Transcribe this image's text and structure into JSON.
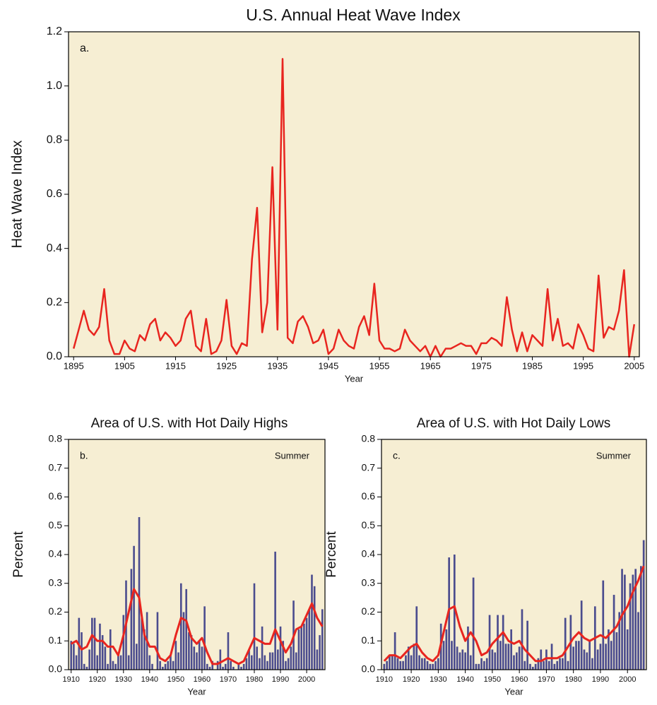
{
  "chart_data": [
    {
      "type": "line",
      "title": "U.S. Annual Heat Wave Index",
      "panel_label": "a.",
      "xlabel": "Year",
      "ylabel": "Heat Wave Index",
      "background": "#f6eed3",
      "xlim": [
        1894,
        2006
      ],
      "xticks": [
        1895,
        1905,
        1915,
        1925,
        1935,
        1945,
        1955,
        1965,
        1975,
        1985,
        1995,
        2005
      ],
      "ylim": [
        0,
        1.2
      ],
      "yticks": [
        {
          "value": 0,
          "label": "0.0"
        },
        0.2,
        0.4,
        0.6,
        0.8,
        {
          "value": 1,
          "label": "1.0"
        },
        1.2
      ],
      "series": [
        {
          "type": "line",
          "color": "#e8251f",
          "x": [
            1895,
            1896,
            1897,
            1898,
            1899,
            1900,
            1901,
            1902,
            1903,
            1904,
            1905,
            1906,
            1907,
            1908,
            1909,
            1910,
            1911,
            1912,
            1913,
            1914,
            1915,
            1916,
            1917,
            1918,
            1919,
            1920,
            1921,
            1922,
            1923,
            1924,
            1925,
            1926,
            1927,
            1928,
            1929,
            1930,
            1931,
            1932,
            1933,
            1934,
            1935,
            1936,
            1937,
            1938,
            1939,
            1940,
            1941,
            1942,
            1943,
            1944,
            1945,
            1946,
            1947,
            1948,
            1949,
            1950,
            1951,
            1952,
            1953,
            1954,
            1955,
            1956,
            1957,
            1958,
            1959,
            1960,
            1961,
            1962,
            1963,
            1964,
            1965,
            1966,
            1967,
            1968,
            1969,
            1970,
            1971,
            1972,
            1973,
            1974,
            1975,
            1976,
            1977,
            1978,
            1979,
            1980,
            1981,
            1982,
            1983,
            1984,
            1985,
            1986,
            1987,
            1988,
            1989,
            1990,
            1991,
            1992,
            1993,
            1994,
            1995,
            1996,
            1997,
            1998,
            1999,
            2000,
            2001,
            2002,
            2003,
            2004,
            2005
          ],
          "values": [
            0.03,
            0.1,
            0.17,
            0.1,
            0.08,
            0.11,
            0.25,
            0.06,
            0.01,
            0.01,
            0.06,
            0.03,
            0.02,
            0.08,
            0.06,
            0.12,
            0.14,
            0.06,
            0.09,
            0.07,
            0.04,
            0.06,
            0.14,
            0.17,
            0.04,
            0.02,
            0.14,
            0.01,
            0.02,
            0.06,
            0.21,
            0.04,
            0.01,
            0.05,
            0.04,
            0.36,
            0.55,
            0.09,
            0.2,
            0.7,
            0.1,
            1.1,
            0.07,
            0.05,
            0.13,
            0.15,
            0.11,
            0.05,
            0.06,
            0.1,
            0.01,
            0.03,
            0.1,
            0.06,
            0.04,
            0.03,
            0.11,
            0.15,
            0.08,
            0.27,
            0.06,
            0.03,
            0.03,
            0.02,
            0.03,
            0.1,
            0.06,
            0.04,
            0.02,
            0.04,
            0.0,
            0.04,
            0.0,
            0.03,
            0.03,
            0.04,
            0.05,
            0.04,
            0.04,
            0.01,
            0.05,
            0.05,
            0.07,
            0.06,
            0.04,
            0.22,
            0.1,
            0.02,
            0.09,
            0.02,
            0.08,
            0.06,
            0.04,
            0.25,
            0.06,
            0.14,
            0.04,
            0.05,
            0.03,
            0.12,
            0.08,
            0.03,
            0.02,
            0.3,
            0.07,
            0.11,
            0.1,
            0.17,
            0.32,
            0.0,
            0.12
          ]
        }
      ]
    },
    {
      "type": "bar",
      "title": "Area of U.S. with Hot Daily Highs",
      "panel_label": "b.",
      "annotation": "Summer",
      "xlabel": "Year",
      "ylabel": "Percent",
      "background": "#f6eed3",
      "xlim": [
        1909,
        2007
      ],
      "xticks": [
        1910,
        1920,
        1930,
        1940,
        1950,
        1960,
        1970,
        1980,
        1990,
        2000
      ],
      "ylim": [
        0,
        0.8
      ],
      "yticks": [
        {
          "value": 0,
          "label": "0.0"
        },
        0.1,
        0.2,
        0.3,
        0.4,
        0.5,
        0.6,
        0.7,
        0.8
      ],
      "series": [
        {
          "type": "bar",
          "color": "#4b4c8e",
          "x": [
            1910,
            1911,
            1912,
            1913,
            1914,
            1915,
            1916,
            1917,
            1918,
            1919,
            1920,
            1921,
            1922,
            1923,
            1924,
            1925,
            1926,
            1927,
            1928,
            1929,
            1930,
            1931,
            1932,
            1933,
            1934,
            1935,
            1936,
            1937,
            1938,
            1939,
            1940,
            1941,
            1942,
            1943,
            1944,
            1945,
            1946,
            1947,
            1948,
            1949,
            1950,
            1951,
            1952,
            1953,
            1954,
            1955,
            1956,
            1957,
            1958,
            1959,
            1960,
            1961,
            1962,
            1963,
            1964,
            1965,
            1966,
            1967,
            1968,
            1969,
            1970,
            1971,
            1972,
            1973,
            1974,
            1975,
            1976,
            1977,
            1978,
            1979,
            1980,
            1981,
            1982,
            1983,
            1984,
            1985,
            1986,
            1987,
            1988,
            1989,
            1990,
            1991,
            1992,
            1993,
            1994,
            1995,
            1996,
            1997,
            1998,
            1999,
            2000,
            2001,
            2002,
            2003,
            2004,
            2005,
            2006
          ],
          "values": [
            0.1,
            0.09,
            0.05,
            0.18,
            0.13,
            0.02,
            0.01,
            0.07,
            0.18,
            0.18,
            0.05,
            0.16,
            0.12,
            0.08,
            0.02,
            0.14,
            0.03,
            0.02,
            0.05,
            0.05,
            0.19,
            0.31,
            0.05,
            0.35,
            0.43,
            0.09,
            0.53,
            0.18,
            0.14,
            0.2,
            0.05,
            0.02,
            0.0,
            0.2,
            0.03,
            0.01,
            0.02,
            0.03,
            0.05,
            0.03,
            0.1,
            0.06,
            0.3,
            0.2,
            0.28,
            0.13,
            0.12,
            0.08,
            0.06,
            0.1,
            0.08,
            0.22,
            0.02,
            0.01,
            0.03,
            0.0,
            0.03,
            0.07,
            0.01,
            0.02,
            0.13,
            0.03,
            0.01,
            0.0,
            0.02,
            0.01,
            0.02,
            0.04,
            0.07,
            0.05,
            0.3,
            0.08,
            0.04,
            0.15,
            0.05,
            0.03,
            0.06,
            0.06,
            0.41,
            0.07,
            0.15,
            0.1,
            0.03,
            0.04,
            0.08,
            0.24,
            0.06,
            0.14,
            0.15,
            0.16,
            0.18,
            0.21,
            0.33,
            0.29,
            0.07,
            0.12,
            0.21
          ]
        },
        {
          "type": "line",
          "color": "#e8251f",
          "x": [
            1910,
            1912,
            1914,
            1916,
            1918,
            1920,
            1922,
            1924,
            1926,
            1928,
            1930,
            1932,
            1934,
            1936,
            1938,
            1940,
            1942,
            1944,
            1946,
            1948,
            1950,
            1952,
            1954,
            1956,
            1958,
            1960,
            1962,
            1964,
            1966,
            1968,
            1970,
            1972,
            1974,
            1976,
            1978,
            1980,
            1982,
            1984,
            1986,
            1988,
            1990,
            1992,
            1994,
            1996,
            1998,
            2000,
            2002,
            2004,
            2006
          ],
          "values": [
            0.09,
            0.1,
            0.07,
            0.08,
            0.12,
            0.1,
            0.1,
            0.08,
            0.08,
            0.05,
            0.12,
            0.2,
            0.28,
            0.25,
            0.12,
            0.08,
            0.08,
            0.04,
            0.03,
            0.05,
            0.12,
            0.18,
            0.17,
            0.11,
            0.09,
            0.11,
            0.06,
            0.02,
            0.02,
            0.03,
            0.04,
            0.03,
            0.02,
            0.03,
            0.07,
            0.11,
            0.1,
            0.09,
            0.09,
            0.14,
            0.1,
            0.06,
            0.09,
            0.14,
            0.15,
            0.19,
            0.23,
            0.18,
            0.15
          ]
        }
      ]
    },
    {
      "type": "bar",
      "title": "Area of U.S. with Hot Daily Lows",
      "panel_label": "c.",
      "annotation": "Summer",
      "xlabel": "Year",
      "ylabel": "Percent",
      "background": "#f6eed3",
      "xlim": [
        1909,
        2007
      ],
      "xticks": [
        1910,
        1920,
        1930,
        1940,
        1950,
        1960,
        1970,
        1980,
        1990,
        2000
      ],
      "ylim": [
        0,
        0.8
      ],
      "yticks": [
        {
          "value": 0,
          "label": "0.0"
        },
        0.1,
        0.2,
        0.3,
        0.4,
        0.5,
        0.6,
        0.7,
        0.8
      ],
      "series": [
        {
          "type": "bar",
          "color": "#4b4c8e",
          "x": [
            1910,
            1911,
            1912,
            1913,
            1914,
            1915,
            1916,
            1917,
            1918,
            1919,
            1920,
            1921,
            1922,
            1923,
            1924,
            1925,
            1926,
            1927,
            1928,
            1929,
            1930,
            1931,
            1932,
            1933,
            1934,
            1935,
            1936,
            1937,
            1938,
            1939,
            1940,
            1941,
            1942,
            1943,
            1944,
            1945,
            1946,
            1947,
            1948,
            1949,
            1950,
            1951,
            1952,
            1953,
            1954,
            1955,
            1956,
            1957,
            1958,
            1959,
            1960,
            1961,
            1962,
            1963,
            1964,
            1965,
            1966,
            1967,
            1968,
            1969,
            1970,
            1971,
            1972,
            1973,
            1974,
            1975,
            1976,
            1977,
            1978,
            1979,
            1980,
            1981,
            1982,
            1983,
            1984,
            1985,
            1986,
            1987,
            1988,
            1989,
            1990,
            1991,
            1992,
            1993,
            1994,
            1995,
            1996,
            1997,
            1998,
            1999,
            2000,
            2001,
            2002,
            2003,
            2004,
            2005,
            2006
          ],
          "values": [
            0.02,
            0.03,
            0.05,
            0.05,
            0.13,
            0.04,
            0.03,
            0.03,
            0.05,
            0.08,
            0.05,
            0.09,
            0.22,
            0.05,
            0.04,
            0.04,
            0.03,
            0.02,
            0.02,
            0.03,
            0.04,
            0.16,
            0.1,
            0.14,
            0.39,
            0.1,
            0.4,
            0.08,
            0.06,
            0.07,
            0.06,
            0.15,
            0.05,
            0.32,
            0.02,
            0.02,
            0.04,
            0.03,
            0.04,
            0.19,
            0.07,
            0.06,
            0.19,
            0.1,
            0.19,
            0.09,
            0.09,
            0.14,
            0.05,
            0.06,
            0.08,
            0.21,
            0.03,
            0.17,
            0.02,
            0.01,
            0.02,
            0.04,
            0.07,
            0.03,
            0.07,
            0.03,
            0.09,
            0.02,
            0.03,
            0.04,
            0.04,
            0.18,
            0.03,
            0.19,
            0.08,
            0.1,
            0.1,
            0.24,
            0.07,
            0.06,
            0.1,
            0.04,
            0.22,
            0.07,
            0.09,
            0.31,
            0.09,
            0.14,
            0.1,
            0.26,
            0.13,
            0.2,
            0.35,
            0.33,
            0.14,
            0.3,
            0.33,
            0.35,
            0.2,
            0.36,
            0.45
          ]
        },
        {
          "type": "line",
          "color": "#e8251f",
          "x": [
            1910,
            1912,
            1914,
            1916,
            1918,
            1920,
            1922,
            1924,
            1926,
            1928,
            1930,
            1932,
            1934,
            1936,
            1938,
            1940,
            1942,
            1944,
            1946,
            1948,
            1950,
            1952,
            1954,
            1956,
            1958,
            1960,
            1962,
            1964,
            1966,
            1968,
            1970,
            1972,
            1974,
            1976,
            1978,
            1980,
            1982,
            1984,
            1986,
            1988,
            1990,
            1992,
            1994,
            1996,
            1998,
            2000,
            2002,
            2004,
            2006
          ],
          "values": [
            0.03,
            0.05,
            0.05,
            0.04,
            0.06,
            0.08,
            0.09,
            0.06,
            0.04,
            0.03,
            0.05,
            0.13,
            0.21,
            0.22,
            0.15,
            0.1,
            0.13,
            0.1,
            0.05,
            0.06,
            0.09,
            0.11,
            0.13,
            0.1,
            0.09,
            0.1,
            0.07,
            0.05,
            0.03,
            0.03,
            0.04,
            0.04,
            0.04,
            0.05,
            0.08,
            0.11,
            0.13,
            0.11,
            0.1,
            0.11,
            0.12,
            0.11,
            0.13,
            0.15,
            0.19,
            0.22,
            0.27,
            0.31,
            0.36
          ]
        }
      ]
    }
  ]
}
